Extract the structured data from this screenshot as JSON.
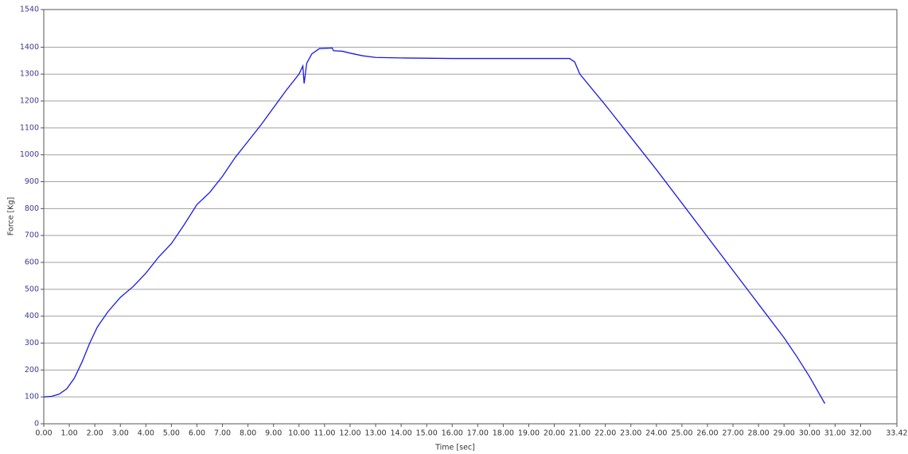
{
  "chart_data": {
    "type": "line",
    "xlabel": "Time [sec]",
    "ylabel": "Force [Kg]",
    "color": "#1a1ae6",
    "grid": true,
    "x": [
      0,
      0.3,
      0.6,
      0.9,
      1.2,
      1.5,
      1.8,
      2.1,
      2.5,
      3.0,
      3.5,
      4.0,
      4.5,
      5.0,
      5.5,
      6.0,
      6.5,
      7.0,
      7.5,
      8.0,
      8.5,
      9.0,
      9.5,
      10.0,
      10.15,
      10.2,
      10.3,
      10.5,
      10.8,
      11.3,
      11.35,
      11.7,
      12.0,
      12.5,
      13.0,
      14.0,
      16.0,
      18.0,
      20.0,
      20.6,
      20.8,
      21.0,
      22.0,
      23.0,
      24.0,
      25.0,
      26.0,
      27.0,
      28.0,
      29.0,
      29.5,
      30.0,
      30.3,
      30.6
    ],
    "values": [
      100,
      102,
      110,
      130,
      170,
      230,
      300,
      360,
      415,
      470,
      510,
      560,
      620,
      670,
      740,
      815,
      860,
      920,
      990,
      1050,
      1110,
      1175,
      1240,
      1300,
      1330,
      1265,
      1340,
      1375,
      1395,
      1397,
      1387,
      1385,
      1378,
      1368,
      1362,
      1360,
      1358,
      1358,
      1358,
      1358,
      1345,
      1300,
      1185,
      1065,
      945,
      820,
      695,
      570,
      445,
      320,
      250,
      175,
      125,
      75
    ],
    "xlim": [
      0,
      33.42
    ],
    "xticks": [
      {
        "value": 0,
        "label": "0.00"
      },
      {
        "value": 1,
        "label": "1.00"
      },
      {
        "value": 2,
        "label": "2.00"
      },
      {
        "value": 3,
        "label": "3.00"
      },
      {
        "value": 4,
        "label": "4.00"
      },
      {
        "value": 5,
        "label": "5.00"
      },
      {
        "value": 6,
        "label": "6.00"
      },
      {
        "value": 7,
        "label": "7.00"
      },
      {
        "value": 8,
        "label": "8.00"
      },
      {
        "value": 9,
        "label": "9.00"
      },
      {
        "value": 10,
        "label": "10.00"
      },
      {
        "value": 11,
        "label": "11.00"
      },
      {
        "value": 12,
        "label": "12.00"
      },
      {
        "value": 13,
        "label": "13.00"
      },
      {
        "value": 14,
        "label": "14.00"
      },
      {
        "value": 15,
        "label": "15.00"
      },
      {
        "value": 16,
        "label": "16.00"
      },
      {
        "value": 17,
        "label": "17.00"
      },
      {
        "value": 18,
        "label": "18.00"
      },
      {
        "value": 19,
        "label": "19.00"
      },
      {
        "value": 20,
        "label": "20.00"
      },
      {
        "value": 21,
        "label": "21.00"
      },
      {
        "value": 22,
        "label": "22.00"
      },
      {
        "value": 23,
        "label": "23.00"
      },
      {
        "value": 24,
        "label": "24.00"
      },
      {
        "value": 25,
        "label": "25.00"
      },
      {
        "value": 26,
        "label": "26.00"
      },
      {
        "value": 27,
        "label": "27.00"
      },
      {
        "value": 28,
        "label": "28.00"
      },
      {
        "value": 29,
        "label": "29.00"
      },
      {
        "value": 30,
        "label": "30.00"
      },
      {
        "value": 31,
        "label": "31.00"
      },
      {
        "value": 32,
        "label": "32.00"
      },
      {
        "value": 33.42,
        "label": "33.42"
      }
    ],
    "ylim": [
      0,
      1540
    ],
    "yticks": [
      0,
      100,
      200,
      300,
      400,
      500,
      600,
      700,
      800,
      900,
      1000,
      1100,
      1200,
      1300,
      1400,
      1540
    ]
  }
}
